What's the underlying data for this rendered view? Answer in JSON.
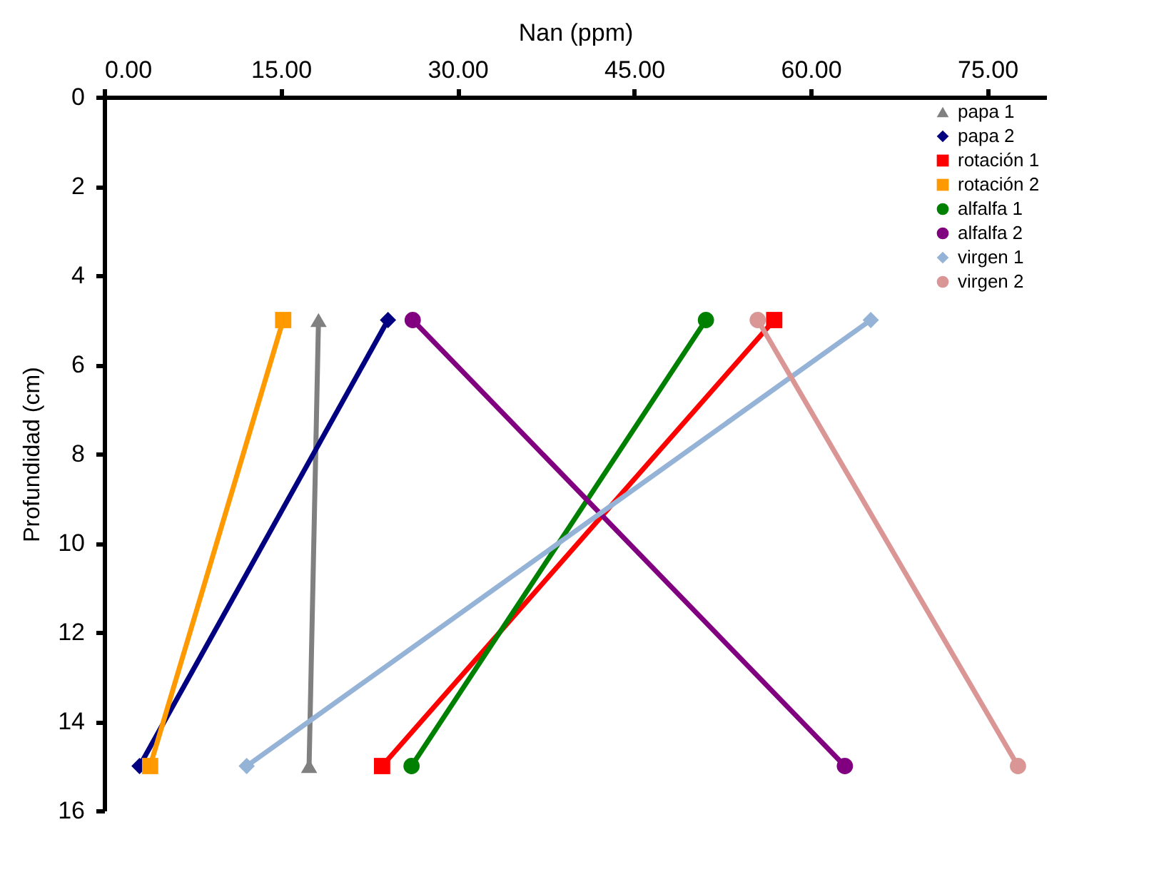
{
  "chart_data": {
    "type": "line",
    "xlabel": "Nan (ppm)",
    "ylabel": "Profundidad (cm)",
    "xlim": [
      0,
      80
    ],
    "xticks": [
      {
        "value": 0,
        "label": "0.00"
      },
      {
        "value": 15,
        "label": "15.00"
      },
      {
        "value": 30,
        "label": "30.00"
      },
      {
        "value": 45,
        "label": "45.00"
      },
      {
        "value": 60,
        "label": "60.00"
      },
      {
        "value": 75,
        "label": "75.00"
      }
    ],
    "ylim": [
      16,
      0
    ],
    "yticks": [
      0,
      2,
      4,
      6,
      8,
      10,
      12,
      14,
      16
    ],
    "grid": false,
    "legend": "top right",
    "series": [
      {
        "name": "papa 1",
        "color": "#808080",
        "marker": "triangle",
        "x": [
          18.2,
          17.4
        ],
        "values": [
          5,
          15
        ]
      },
      {
        "name": "papa 2",
        "color": "#000080",
        "marker": "diamond",
        "x": [
          24.1,
          3.0
        ],
        "values": [
          5,
          15
        ]
      },
      {
        "name": "rotación 1",
        "color": "#ff0000",
        "marker": "square",
        "x": [
          56.9,
          23.6
        ],
        "values": [
          5,
          15
        ]
      },
      {
        "name": "rotación 2",
        "color": "#ff9900",
        "marker": "square",
        "x": [
          15.2,
          3.9
        ],
        "values": [
          5,
          15
        ]
      },
      {
        "name": "alfalfa 1",
        "color": "#008000",
        "marker": "circle",
        "x": [
          51.1,
          26.1
        ],
        "values": [
          5,
          15
        ]
      },
      {
        "name": "alfalfa 2",
        "color": "#800080",
        "marker": "circle",
        "x": [
          26.2,
          62.9
        ],
        "values": [
          5,
          15
        ]
      },
      {
        "name": "virgen 1",
        "color": "#95b3d7",
        "marker": "diamond",
        "x": [
          65.1,
          12.1
        ],
        "values": [
          5,
          15
        ]
      },
      {
        "name": "virgen 2",
        "color": "#d99694",
        "marker": "circle",
        "x": [
          55.5,
          77.6
        ],
        "values": [
          5,
          15
        ]
      }
    ]
  }
}
